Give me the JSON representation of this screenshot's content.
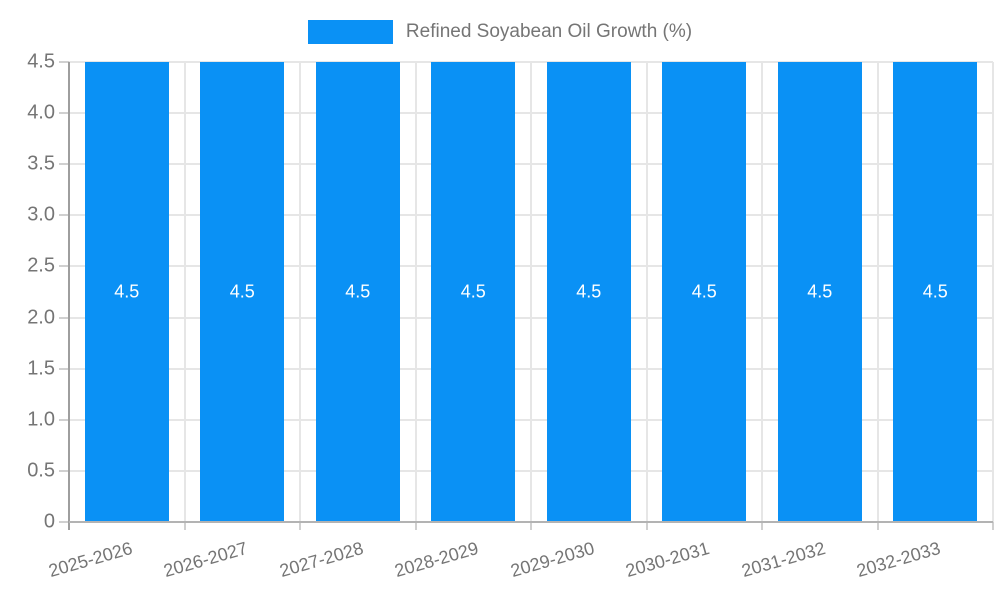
{
  "legend": {
    "label": "Refined Soyabean Oil Growth (%)"
  },
  "chart_data": {
    "type": "bar",
    "title": "Refined Soyabean Oil Growth (%)",
    "categories": [
      "2025-2026",
      "2026-2027",
      "2027-2028",
      "2028-2029",
      "2029-2030",
      "2030-2031",
      "2031-2032",
      "2032-2033"
    ],
    "values": [
      4.5,
      4.5,
      4.5,
      4.5,
      4.5,
      4.5,
      4.5,
      4.5
    ],
    "value_labels": [
      "4.5",
      "4.5",
      "4.5",
      "4.5",
      "4.5",
      "4.5",
      "4.5",
      "4.5"
    ],
    "xlabel": "",
    "ylabel": "",
    "ylim": [
      0,
      4.5
    ],
    "ytick_step": 0.5,
    "ytick_labels": [
      "0",
      "0.5",
      "1.0",
      "1.5",
      "2.0",
      "2.5",
      "3.0",
      "3.5",
      "4.0",
      "4.5"
    ],
    "grid": true,
    "legend_position": "top-center",
    "colors": {
      "bar": "#0a91f5",
      "grid": "#e6e6e6",
      "y_axis_line": "#9e9e9e",
      "x_axis_line": "#b3b3b3",
      "tick": "#d0d0d0",
      "axis_label": "#757575",
      "value_label": "#ffffff",
      "background": "#ffffff"
    }
  }
}
